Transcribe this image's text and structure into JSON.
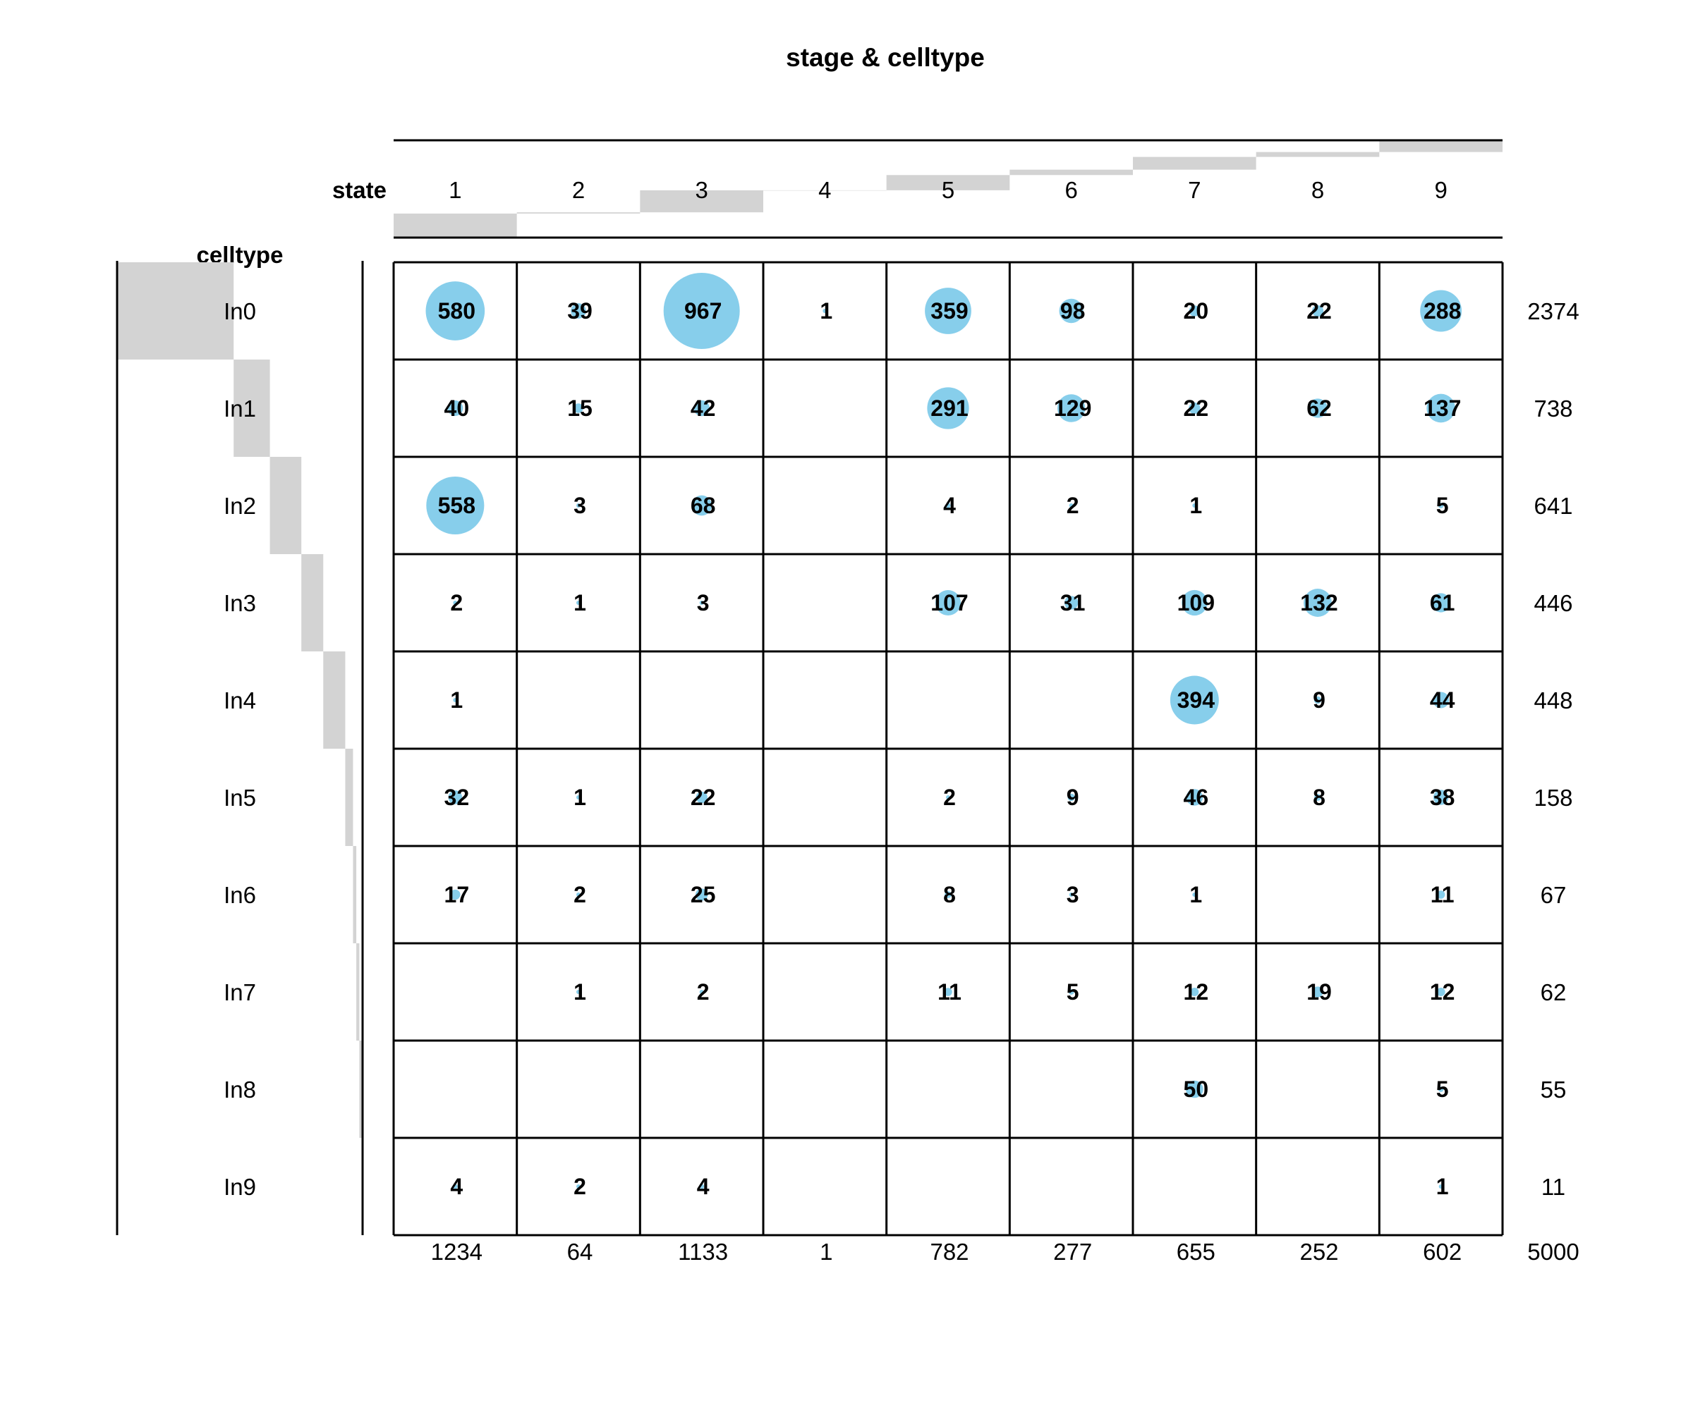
{
  "chart_data": {
    "type": "table",
    "title": "stage & celltype",
    "col_header": "state",
    "row_header": "celltype",
    "columns": [
      "1",
      "2",
      "3",
      "4",
      "5",
      "6",
      "7",
      "8",
      "9"
    ],
    "rows": [
      "In0",
      "In1",
      "In2",
      "In3",
      "In4",
      "In5",
      "In6",
      "In7",
      "In8",
      "In9"
    ],
    "values": [
      [
        580,
        39,
        967,
        1,
        359,
        98,
        20,
        22,
        288
      ],
      [
        40,
        15,
        42,
        null,
        291,
        129,
        22,
        62,
        137
      ],
      [
        558,
        3,
        68,
        null,
        4,
        2,
        1,
        null,
        5
      ],
      [
        2,
        1,
        3,
        null,
        107,
        31,
        109,
        132,
        61
      ],
      [
        1,
        null,
        null,
        null,
        null,
        null,
        394,
        9,
        44
      ],
      [
        32,
        1,
        22,
        null,
        2,
        9,
        46,
        8,
        38
      ],
      [
        17,
        2,
        25,
        null,
        8,
        3,
        1,
        null,
        11
      ],
      [
        null,
        1,
        2,
        null,
        11,
        5,
        12,
        19,
        12
      ],
      [
        null,
        null,
        null,
        null,
        null,
        null,
        50,
        null,
        5
      ],
      [
        4,
        2,
        4,
        null,
        null,
        null,
        null,
        null,
        1
      ]
    ],
    "row_totals": [
      2374,
      738,
      641,
      446,
      448,
      158,
      67,
      62,
      55,
      11
    ],
    "col_totals": [
      1234,
      64,
      1133,
      1,
      782,
      277,
      655,
      252,
      602
    ],
    "grand_total": 5000,
    "bubble_color": "#87ceeb",
    "bar_color": "#d3d3d3"
  }
}
